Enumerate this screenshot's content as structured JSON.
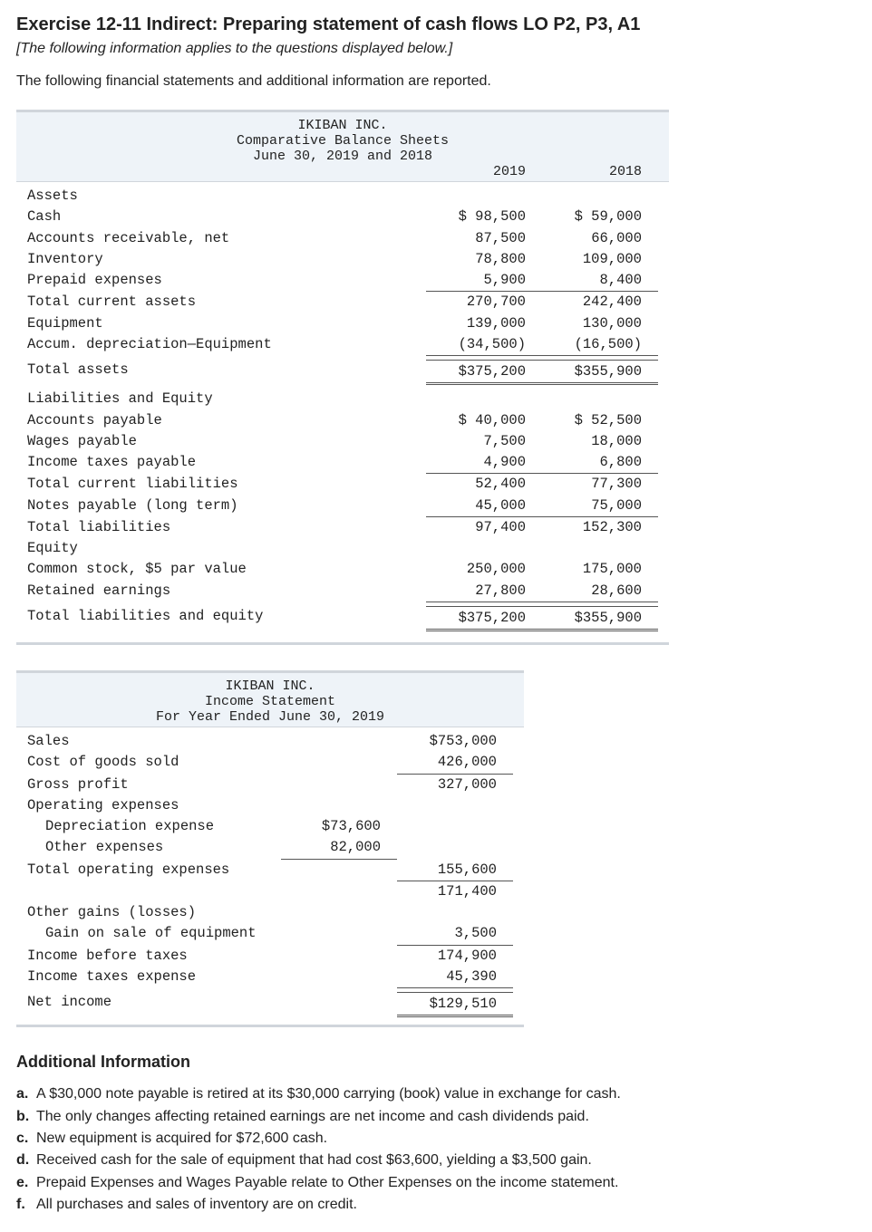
{
  "title": "Exercise 12-11 Indirect: Preparing statement of cash flows LO P2, P3, A1",
  "subtitle": "[The following information applies to the questions displayed below.]",
  "intro": "The following financial statements and additional information are reported.",
  "company": "IKIBAN INC.",
  "balance_sheet": {
    "header": [
      "IKIBAN INC.",
      "Comparative Balance Sheets",
      "June 30, 2019 and 2018"
    ],
    "years": [
      "2019",
      "2018"
    ],
    "colors": {
      "header_bg": "#eef3f8",
      "border": "#d0d5db"
    },
    "sections": [
      {
        "heading": "Assets",
        "rows": [
          {
            "label": "Cash",
            "v": [
              "$ 98,500",
              "$ 59,000"
            ]
          },
          {
            "label": "Accounts receivable, net",
            "v": [
              "87,500",
              "66,000"
            ]
          },
          {
            "label": "Inventory",
            "v": [
              "78,800",
              "109,000"
            ]
          },
          {
            "label": "Prepaid expenses",
            "v": [
              "5,900",
              "8,400"
            ],
            "underline": true
          },
          {
            "label": "Total current assets",
            "v": [
              "270,700",
              "242,400"
            ]
          },
          {
            "label": "Equipment",
            "v": [
              "139,000",
              "130,000"
            ]
          },
          {
            "label": "Accum. depreciation—Equipment",
            "v": [
              "(34,500)",
              "(16,500)"
            ],
            "underline": true
          },
          {
            "label": "Total assets",
            "v": [
              "$375,200",
              "$355,900"
            ],
            "dblrule": true,
            "gapAbove": true
          }
        ]
      },
      {
        "heading": "Liabilities and Equity",
        "rows": [
          {
            "label": "Accounts payable",
            "v": [
              "$ 40,000",
              "$ 52,500"
            ]
          },
          {
            "label": "Wages payable",
            "v": [
              "7,500",
              "18,000"
            ]
          },
          {
            "label": "Income taxes payable",
            "v": [
              "4,900",
              "6,800"
            ],
            "underline": true
          },
          {
            "label": "Total current liabilities",
            "v": [
              "52,400",
              "77,300"
            ]
          },
          {
            "label": "Notes payable (long term)",
            "v": [
              "45,000",
              "75,000"
            ],
            "underline": true
          },
          {
            "label": "Total liabilities",
            "v": [
              "97,400",
              "152,300"
            ]
          },
          {
            "label": "Equity",
            "v": [
              "",
              ""
            ]
          },
          {
            "label": "Common stock, $5 par value",
            "v": [
              "250,000",
              "175,000"
            ]
          },
          {
            "label": "Retained earnings",
            "v": [
              "27,800",
              "28,600"
            ],
            "underline": true
          },
          {
            "label": "Total liabilities and equity",
            "v": [
              "$375,200",
              "$355,900"
            ],
            "dblrule": true,
            "gapAbove": true
          }
        ]
      }
    ]
  },
  "income_statement": {
    "header": [
      "IKIBAN INC.",
      "Income Statement",
      "For Year Ended June 30, 2019"
    ],
    "rows": [
      {
        "label": "Sales",
        "v": [
          "",
          "$753,000"
        ]
      },
      {
        "label": "Cost of goods sold",
        "v": [
          "",
          "426,000"
        ],
        "underline": true
      },
      {
        "label": "Gross profit",
        "v": [
          "",
          "327,000"
        ]
      },
      {
        "label": "Operating expenses",
        "v": [
          "",
          ""
        ]
      },
      {
        "label": "Depreciation expense",
        "indent": true,
        "v": [
          "$73,600",
          ""
        ]
      },
      {
        "label": "Other expenses",
        "indent": true,
        "v": [
          "82,000",
          ""
        ],
        "underlineCol": 0
      },
      {
        "label": "Total operating expenses",
        "v": [
          "",
          "155,600"
        ],
        "underline": true
      },
      {
        "label": "",
        "v": [
          "",
          "171,400"
        ]
      },
      {
        "label": "Other gains (losses)",
        "v": [
          "",
          ""
        ]
      },
      {
        "label": "Gain on sale of equipment",
        "indent": true,
        "v": [
          "",
          "3,500"
        ],
        "underline": true
      },
      {
        "label": "Income before taxes",
        "v": [
          "",
          "174,900"
        ]
      },
      {
        "label": "Income taxes expense",
        "v": [
          "",
          "45,390"
        ],
        "underline": true
      },
      {
        "label": "Net income",
        "v": [
          "",
          "$129,510"
        ],
        "dblrule": true,
        "gapAbove": true
      }
    ]
  },
  "additional_heading": "Additional Information",
  "additional": [
    {
      "letter": "a.",
      "text": "A $30,000 note payable is retired at its $30,000 carrying (book) value in exchange for cash."
    },
    {
      "letter": "b.",
      "text": "The only changes affecting retained earnings are net income and cash dividends paid."
    },
    {
      "letter": "c.",
      "text": "New equipment is acquired for $72,600 cash."
    },
    {
      "letter": "d.",
      "text": "Received cash for the sale of equipment that had cost $63,600, yielding a $3,500 gain."
    },
    {
      "letter": "e.",
      "text": "Prepaid Expenses and Wages Payable relate to Other Expenses on the income statement."
    },
    {
      "letter": "f.",
      "text": "All purchases and sales of inventory are on credit."
    }
  ]
}
